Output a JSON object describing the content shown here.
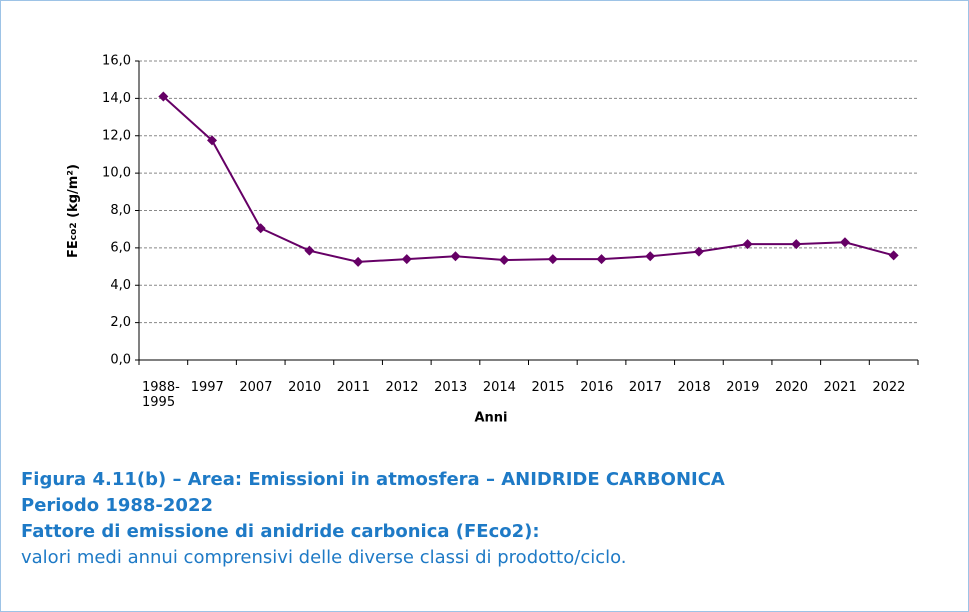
{
  "chart_data": {
    "type": "line",
    "y_label": {
      "main": "FE",
      "sub": "co2",
      "unit": " (kg/m²)"
    },
    "x_label": "Anni",
    "categories": [
      "1988-\n1995",
      "1997",
      "2007",
      "2010",
      "2011",
      "2012",
      "2013",
      "2014",
      "2015",
      "2016",
      "2017",
      "2018",
      "2019",
      "2020",
      "2021",
      "2022"
    ],
    "series": [
      {
        "name": "FEco2",
        "color": "#660066",
        "values": [
          14.1,
          11.75,
          7.05,
          5.85,
          5.25,
          5.4,
          5.55,
          5.35,
          5.4,
          5.4,
          5.55,
          5.8,
          6.2,
          6.2,
          6.3,
          5.6
        ]
      }
    ],
    "ylim": [
      0,
      16
    ],
    "yticks": [
      {
        "value": 0,
        "label": "0,0"
      },
      {
        "value": 2,
        "label": "2,0"
      },
      {
        "value": 4,
        "label": "4,0"
      },
      {
        "value": 6,
        "label": "6,0"
      },
      {
        "value": 8,
        "label": "8,0"
      },
      {
        "value": 10,
        "label": "10,0"
      },
      {
        "value": 12,
        "label": "12,0"
      },
      {
        "value": 14,
        "label": "14,0"
      },
      {
        "value": 16,
        "label": "16,0"
      }
    ],
    "grid": true
  },
  "caption": [
    "Figura 4.11(b) – Area: Emissioni in atmosfera – ANIDRIDE CARBONICA",
    "Periodo 1988-2022",
    "Fattore di emissione di anidride carbonica (FEco2):",
    "valori medi annui comprensivi delle diverse classi di prodotto/ciclo."
  ]
}
